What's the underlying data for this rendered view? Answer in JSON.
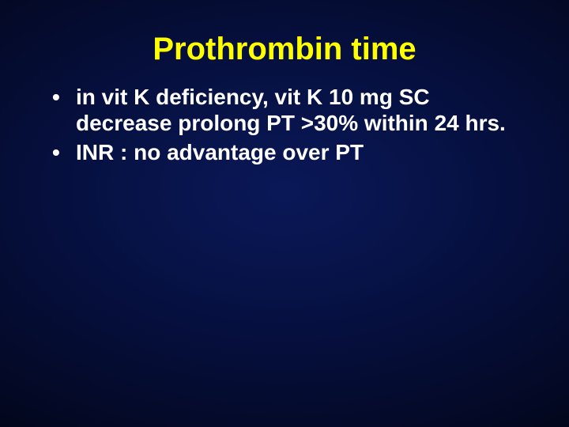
{
  "slide": {
    "title": "Prothrombin time",
    "title_color": "#ffff00",
    "title_fontsize": 40,
    "bullet_fontsize": 28,
    "bullet_color": "#ffffff",
    "background": {
      "type": "radial-gradient",
      "center_color": "#0a1858",
      "edge_color": "#000000"
    },
    "bullets": [
      "in vit K deficiency, vit K 10 mg SC decrease prolong PT >30% within 24 hrs.",
      "INR : no advantage over PT"
    ]
  }
}
